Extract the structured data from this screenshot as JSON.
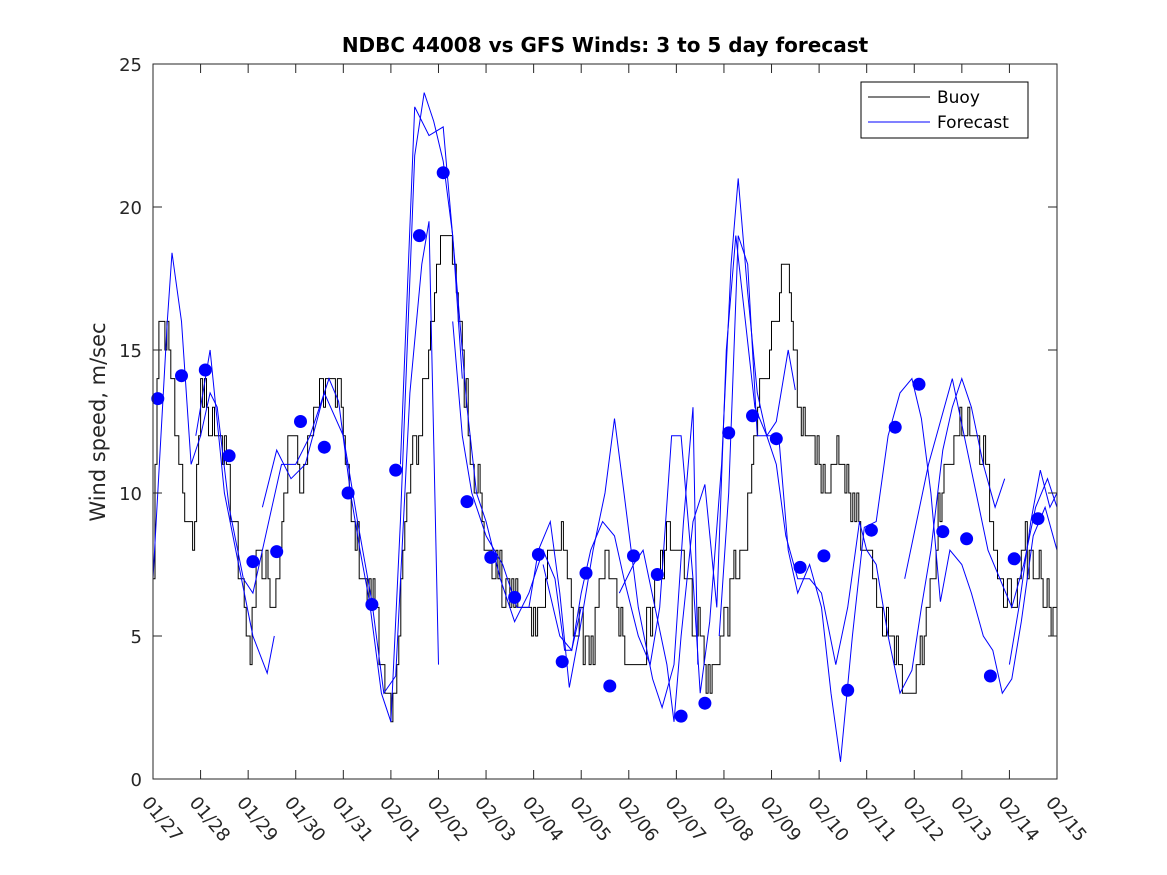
{
  "chart_data": {
    "type": "line",
    "title": "NDBC 44008 vs GFS Winds: 3 to 5 day forecast",
    "xlabel": "",
    "ylabel": "Wind speed, m/sec",
    "xlim": [
      0,
      19
    ],
    "ylim": [
      0,
      25
    ],
    "yticks": [
      0,
      5,
      10,
      15,
      20,
      25
    ],
    "xtick_labels": [
      "01/27",
      "01/28",
      "01/29",
      "01/30",
      "01/31",
      "02/01",
      "02/02",
      "02/03",
      "02/04",
      "02/05",
      "02/06",
      "02/07",
      "02/08",
      "02/09",
      "02/10",
      "02/11",
      "02/12",
      "02/13",
      "02/14",
      "02/15"
    ],
    "legend": {
      "position": "top-right",
      "entries": [
        {
          "label": "Buoy",
          "color": "#000000"
        },
        {
          "label": "Forecast",
          "color": "#0000ff"
        }
      ]
    },
    "buoy_anchors": [
      [
        0,
        7
      ],
      [
        0.05,
        12
      ],
      [
        0.15,
        16
      ],
      [
        0.3,
        15
      ],
      [
        0.55,
        11
      ],
      [
        0.7,
        9
      ],
      [
        0.85,
        8.5
      ],
      [
        1.0,
        14
      ],
      [
        1.15,
        12.5
      ],
      [
        1.4,
        12
      ],
      [
        1.6,
        10
      ],
      [
        1.75,
        8
      ],
      [
        1.9,
        6
      ],
      [
        2.05,
        5
      ],
      [
        2.2,
        8
      ],
      [
        2.4,
        7
      ],
      [
        2.55,
        6.5
      ],
      [
        2.7,
        9
      ],
      [
        2.85,
        11.5
      ],
      [
        3.0,
        12
      ],
      [
        3.1,
        10
      ],
      [
        3.2,
        11
      ],
      [
        3.4,
        13
      ],
      [
        3.6,
        14
      ],
      [
        3.8,
        13.5
      ],
      [
        3.95,
        13
      ],
      [
        4.1,
        10
      ],
      [
        4.3,
        8
      ],
      [
        4.5,
        6.5
      ],
      [
        4.7,
        6
      ],
      [
        4.85,
        3
      ],
      [
        5.0,
        2
      ],
      [
        5.1,
        4
      ],
      [
        5.25,
        8
      ],
      [
        5.45,
        11
      ],
      [
        5.65,
        13
      ],
      [
        5.85,
        16
      ],
      [
        6.0,
        18.5
      ],
      [
        6.25,
        19
      ],
      [
        6.45,
        16
      ],
      [
        6.65,
        12
      ],
      [
        6.85,
        10
      ],
      [
        7.0,
        8
      ],
      [
        7.3,
        7
      ],
      [
        7.55,
        6.5
      ],
      [
        7.8,
        6
      ],
      [
        8.0,
        6
      ],
      [
        8.2,
        6.5
      ],
      [
        8.4,
        8.5
      ],
      [
        8.6,
        8
      ],
      [
        8.8,
        6
      ],
      [
        9.0,
        5
      ],
      [
        9.25,
        4.5
      ],
      [
        9.5,
        8
      ],
      [
        9.75,
        6
      ],
      [
        9.95,
        4
      ],
      [
        10.15,
        3.5
      ],
      [
        10.4,
        5
      ],
      [
        10.6,
        7
      ],
      [
        10.85,
        8.5
      ],
      [
        11.1,
        8
      ],
      [
        11.3,
        6
      ],
      [
        11.5,
        5
      ],
      [
        11.65,
        3
      ],
      [
        11.85,
        4
      ],
      [
        12.05,
        6
      ],
      [
        12.2,
        7
      ],
      [
        12.45,
        8
      ],
      [
        12.7,
        13
      ],
      [
        12.9,
        15
      ],
      [
        13.05,
        16
      ],
      [
        13.25,
        18
      ],
      [
        13.4,
        16
      ],
      [
        13.55,
        13
      ],
      [
        13.75,
        12
      ],
      [
        13.95,
        11.5
      ],
      [
        14.15,
        10
      ],
      [
        14.35,
        11
      ],
      [
        14.6,
        10.5
      ],
      [
        14.85,
        9
      ],
      [
        15.1,
        7.5
      ],
      [
        15.3,
        6
      ],
      [
        15.5,
        5
      ],
      [
        15.75,
        3.5
      ],
      [
        15.95,
        2.5
      ],
      [
        16.15,
        5
      ],
      [
        16.35,
        7
      ],
      [
        16.55,
        10
      ],
      [
        16.75,
        11.5
      ],
      [
        16.95,
        12
      ],
      [
        17.15,
        12.5
      ],
      [
        17.35,
        12
      ],
      [
        17.55,
        10
      ],
      [
        17.75,
        7
      ],
      [
        17.95,
        6
      ],
      [
        18.15,
        6.5
      ],
      [
        18.35,
        8
      ],
      [
        18.55,
        7.5
      ],
      [
        18.75,
        6.5
      ],
      [
        18.95,
        6
      ]
    ],
    "forecast_series": [
      {
        "name": "Forecast",
        "points": [
          [
            0,
            7
          ],
          [
            0.3,
            16
          ],
          [
            0.4,
            18.4
          ],
          [
            0.6,
            16
          ],
          [
            0.8,
            11
          ],
          [
            1.0,
            12
          ],
          [
            1.2,
            13.5
          ],
          [
            1.35,
            13
          ],
          [
            1.6,
            9.5
          ],
          [
            1.9,
            7
          ],
          [
            2.1,
            6.5
          ],
          [
            2.3,
            8
          ],
          [
            2.5,
            9.5
          ],
          [
            2.7,
            11
          ],
          [
            3.0,
            11
          ],
          [
            3.3,
            12
          ],
          [
            3.5,
            13
          ],
          [
            3.7,
            14
          ],
          [
            3.9,
            13.2
          ],
          [
            4.15,
            10
          ],
          [
            4.35,
            8
          ],
          [
            4.55,
            6.2
          ],
          [
            4.8,
            3
          ],
          [
            5.0,
            2
          ],
          [
            5.2,
            9
          ],
          [
            5.5,
            21.8
          ],
          [
            5.7,
            24
          ],
          [
            5.9,
            23
          ],
          [
            6.1,
            21.6
          ],
          [
            6.3,
            19
          ],
          [
            6.5,
            14
          ]
        ]
      },
      {
        "name": "Forecast",
        "points": [
          [
            0.9,
            12
          ],
          [
            1.2,
            15
          ],
          [
            1.5,
            10
          ],
          [
            1.8,
            7.5
          ],
          [
            2.1,
            5
          ],
          [
            2.4,
            3.7
          ],
          [
            2.55,
            5
          ]
        ]
      },
      {
        "name": "Forecast",
        "points": [
          [
            2.3,
            9.5
          ],
          [
            2.6,
            11.5
          ],
          [
            2.9,
            10.5
          ],
          [
            3.2,
            11
          ],
          [
            3.6,
            13.5
          ],
          [
            4.0,
            12
          ],
          [
            4.3,
            9
          ],
          [
            4.6,
            6.2
          ],
          [
            4.85,
            3
          ],
          [
            5.1,
            3.6
          ],
          [
            5.4,
            13.5
          ],
          [
            5.65,
            18
          ],
          [
            5.8,
            19.5
          ],
          [
            6.0,
            4
          ]
        ]
      },
      {
        "name": "Forecast",
        "points": [
          [
            5.2,
            11
          ],
          [
            5.5,
            23.5
          ],
          [
            5.8,
            22.5
          ],
          [
            6.1,
            22.8
          ],
          [
            6.35,
            18
          ],
          [
            6.6,
            13
          ],
          [
            6.8,
            10
          ],
          [
            7.0,
            9
          ],
          [
            7.3,
            7
          ],
          [
            7.6,
            5.5
          ],
          [
            7.9,
            6.5
          ],
          [
            8.2,
            8
          ],
          [
            8.45,
            7
          ],
          [
            8.65,
            4.5
          ],
          [
            8.8,
            4.5
          ],
          [
            9.0,
            6
          ]
        ]
      },
      {
        "name": "Forecast",
        "points": [
          [
            6.3,
            16
          ],
          [
            6.5,
            12
          ],
          [
            6.7,
            10
          ],
          [
            7.0,
            8.5
          ],
          [
            7.35,
            7.5
          ],
          [
            7.65,
            6
          ],
          [
            7.9,
            6
          ],
          [
            8.1,
            8
          ],
          [
            8.35,
            9
          ],
          [
            8.55,
            6.5
          ],
          [
            8.75,
            3.2
          ],
          [
            8.95,
            5
          ],
          [
            9.25,
            8
          ],
          [
            9.5,
            10
          ],
          [
            9.7,
            12.6
          ],
          [
            9.9,
            10
          ],
          [
            10.2,
            6
          ],
          [
            10.5,
            3.5
          ],
          [
            10.7,
            2.5
          ],
          [
            10.95,
            4
          ],
          [
            11.15,
            9
          ],
          [
            11.35,
            13
          ],
          [
            11.45,
            4
          ]
        ]
      },
      {
        "name": "Forecast",
        "points": [
          [
            8.2,
            7.5
          ],
          [
            8.55,
            5
          ],
          [
            8.8,
            4.5
          ],
          [
            9.0,
            6.5
          ],
          [
            9.2,
            8
          ],
          [
            9.45,
            9
          ],
          [
            9.7,
            8.5
          ],
          [
            9.9,
            7
          ],
          [
            10.2,
            5
          ],
          [
            10.45,
            4
          ],
          [
            10.65,
            6
          ],
          [
            10.9,
            12
          ],
          [
            11.1,
            12
          ],
          [
            11.35,
            7
          ],
          [
            11.5,
            3
          ],
          [
            11.7,
            5.5
          ],
          [
            11.95,
            11
          ],
          [
            12.15,
            18
          ],
          [
            12.3,
            21
          ],
          [
            12.5,
            17
          ],
          [
            12.7,
            13.5
          ],
          [
            12.9,
            12
          ],
          [
            13.1,
            12.5
          ],
          [
            13.35,
            15
          ],
          [
            13.5,
            13.6
          ]
        ]
      },
      {
        "name": "Forecast",
        "points": [
          [
            9.8,
            6.5
          ],
          [
            10.1,
            7.5
          ],
          [
            10.3,
            8
          ],
          [
            10.55,
            6
          ],
          [
            10.8,
            4
          ],
          [
            10.95,
            2
          ],
          [
            11.1,
            5
          ],
          [
            11.35,
            9
          ],
          [
            11.6,
            10.3
          ],
          [
            11.85,
            6
          ],
          [
            12.05,
            15
          ],
          [
            12.25,
            19
          ],
          [
            12.45,
            16
          ],
          [
            12.65,
            13
          ],
          [
            12.9,
            12
          ],
          [
            13.1,
            11
          ],
          [
            13.3,
            8.5
          ],
          [
            13.55,
            7
          ],
          [
            13.8,
            7
          ],
          [
            14.05,
            6.5
          ],
          [
            14.35,
            4
          ],
          [
            14.6,
            6
          ],
          [
            14.85,
            9
          ],
          [
            15.0,
            8
          ],
          [
            15.2,
            7.5
          ],
          [
            15.45,
            5
          ],
          [
            15.7,
            3
          ],
          [
            15.95,
            3.8
          ],
          [
            16.15,
            6
          ],
          [
            16.35,
            8
          ],
          [
            16.6,
            11.5
          ],
          [
            16.8,
            13
          ],
          [
            17.0,
            14
          ],
          [
            17.2,
            13
          ],
          [
            17.45,
            11
          ],
          [
            17.7,
            9.5
          ],
          [
            17.9,
            10.5
          ]
        ]
      },
      {
        "name": "Forecast",
        "points": [
          [
            11.9,
            5
          ],
          [
            12.1,
            10
          ],
          [
            12.3,
            19
          ],
          [
            12.5,
            18
          ],
          [
            12.7,
            12
          ],
          [
            12.9,
            12
          ],
          [
            13.15,
            12
          ],
          [
            13.35,
            8
          ],
          [
            13.55,
            6.5
          ],
          [
            13.8,
            7.5
          ],
          [
            14.05,
            6
          ],
          [
            14.25,
            3
          ],
          [
            14.45,
            0.6
          ],
          [
            14.7,
            5
          ],
          [
            14.95,
            8.8
          ],
          [
            15.2,
            9
          ],
          [
            15.45,
            12
          ],
          [
            15.7,
            13.5
          ],
          [
            15.95,
            14
          ],
          [
            16.15,
            12.6
          ],
          [
            16.35,
            10
          ],
          [
            16.55,
            6.2
          ],
          [
            16.75,
            8
          ],
          [
            17.0,
            7.5
          ],
          [
            17.2,
            6.5
          ],
          [
            17.45,
            5
          ],
          [
            17.65,
            4.5
          ],
          [
            17.85,
            3
          ],
          [
            18.05,
            3.5
          ],
          [
            18.25,
            5.5
          ],
          [
            18.5,
            8.5
          ],
          [
            18.75,
            9.5
          ],
          [
            19.0,
            8
          ]
        ]
      },
      {
        "name": "Forecast",
        "points": [
          [
            15.8,
            7
          ],
          [
            16.05,
            9
          ],
          [
            16.3,
            11
          ],
          [
            16.55,
            12.5
          ],
          [
            16.8,
            14
          ],
          [
            17.05,
            12
          ],
          [
            17.3,
            10
          ],
          [
            17.55,
            8
          ],
          [
            17.8,
            7
          ],
          [
            18.05,
            6
          ],
          [
            18.3,
            7.5
          ],
          [
            18.55,
            9.5
          ],
          [
            18.8,
            10.5
          ],
          [
            19.0,
            9.5
          ]
        ]
      },
      {
        "name": "Forecast",
        "points": [
          [
            18.0,
            4
          ],
          [
            18.2,
            6
          ],
          [
            18.45,
            9
          ],
          [
            18.65,
            10.8
          ],
          [
            18.85,
            9.5
          ],
          [
            19.0,
            10
          ]
        ]
      }
    ],
    "forecast_markers": [
      [
        0.1,
        13.3
      ],
      [
        0.6,
        14.1
      ],
      [
        1.1,
        14.3
      ],
      [
        1.6,
        11.3
      ],
      [
        2.1,
        7.6
      ],
      [
        2.6,
        7.95
      ],
      [
        3.1,
        12.5
      ],
      [
        3.6,
        11.6
      ],
      [
        4.1,
        10
      ],
      [
        4.6,
        6.1
      ],
      [
        5.1,
        10.8
      ],
      [
        5.6,
        19
      ],
      [
        6.1,
        21.2
      ],
      [
        6.6,
        9.7
      ],
      [
        7.1,
        7.75
      ],
      [
        7.6,
        6.35
      ],
      [
        8.1,
        7.85
      ],
      [
        8.6,
        4.1
      ],
      [
        9.1,
        7.2
      ],
      [
        9.6,
        3.25
      ],
      [
        10.1,
        7.8
      ],
      [
        10.6,
        7.15
      ],
      [
        11.1,
        2.2
      ],
      [
        11.6,
        2.65
      ],
      [
        12.1,
        12.1
      ],
      [
        12.6,
        12.7
      ],
      [
        13.1,
        11.9
      ],
      [
        13.6,
        7.4
      ],
      [
        14.1,
        7.8
      ],
      [
        14.6,
        3.1
      ],
      [
        15.1,
        8.7
      ],
      [
        15.6,
        12.3
      ],
      [
        16.1,
        13.8
      ],
      [
        16.6,
        8.65
      ],
      [
        17.1,
        8.4
      ],
      [
        17.6,
        3.6
      ],
      [
        18.1,
        7.7
      ],
      [
        18.6,
        9.1
      ]
    ]
  }
}
